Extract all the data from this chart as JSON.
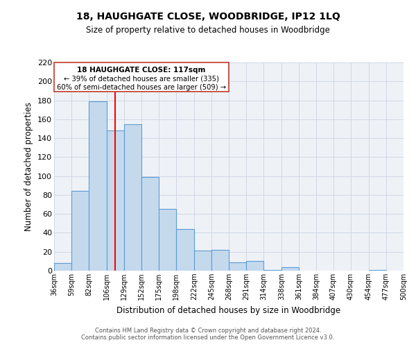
{
  "title": "18, HAUGHGATE CLOSE, WOODBRIDGE, IP12 1LQ",
  "subtitle": "Size of property relative to detached houses in Woodbridge",
  "xlabel": "Distribution of detached houses by size in Woodbridge",
  "ylabel": "Number of detached properties",
  "bar_color": "#c5d9ed",
  "bar_edge_color": "#5b9bd5",
  "bin_labels": [
    "36sqm",
    "59sqm",
    "82sqm",
    "106sqm",
    "129sqm",
    "152sqm",
    "175sqm",
    "198sqm",
    "222sqm",
    "245sqm",
    "268sqm",
    "291sqm",
    "314sqm",
    "338sqm",
    "361sqm",
    "384sqm",
    "407sqm",
    "430sqm",
    "454sqm",
    "477sqm",
    "500sqm"
  ],
  "bar_heights": [
    8,
    84,
    179,
    148,
    155,
    99,
    65,
    44,
    21,
    22,
    9,
    10,
    1,
    4,
    0,
    0,
    0,
    0,
    1,
    0
  ],
  "ylim": [
    0,
    220
  ],
  "yticks": [
    0,
    20,
    40,
    60,
    80,
    100,
    120,
    140,
    160,
    180,
    200,
    220
  ],
  "property_line_x": 117,
  "bin_edges_sqm": [
    36,
    59,
    82,
    106,
    129,
    152,
    175,
    198,
    222,
    245,
    268,
    291,
    314,
    338,
    361,
    384,
    407,
    430,
    454,
    477,
    500
  ],
  "annotation_title": "18 HAUGHGATE CLOSE: 117sqm",
  "annotation_line1": "← 39% of detached houses are smaller (335)",
  "annotation_line2": "60% of semi-detached houses are larger (509) →",
  "footer_line1": "Contains HM Land Registry data © Crown copyright and database right 2024.",
  "footer_line2": "Contains public sector information licensed under the Open Government Licence v3.0.",
  "grid_color": "#d0d8e4",
  "background_color": "#eef2f7"
}
